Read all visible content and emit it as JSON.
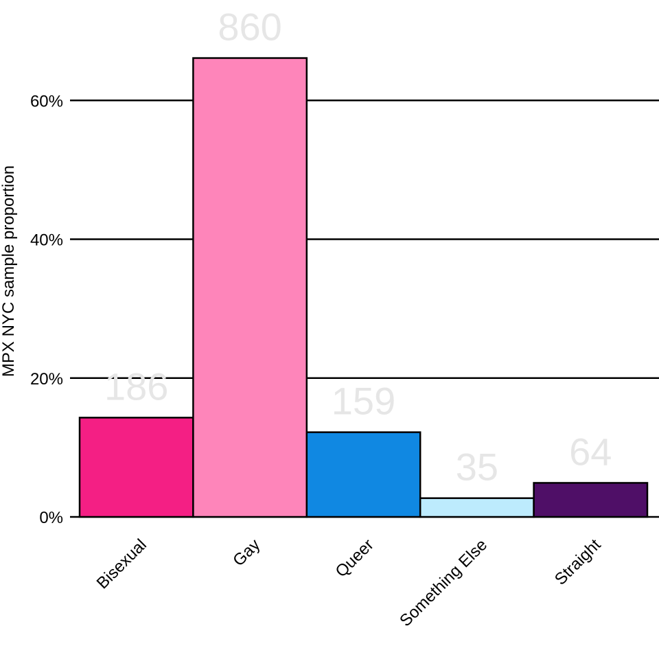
{
  "chart_data": {
    "type": "bar",
    "categories": [
      "Bisexual",
      "Gay",
      "Queer",
      "Something Else",
      "Straight"
    ],
    "values": [
      0.143,
      0.661,
      0.122,
      0.027,
      0.049
    ],
    "counts": [
      "186",
      "860",
      "159",
      "35",
      "64"
    ],
    "colors": [
      "#f41f84",
      "#fe85ba",
      "#1088e2",
      "#bdebfd",
      "#4f0f67"
    ],
    "ylabel": "MPX NYC sample proportion",
    "ylim": [
      0,
      0.7
    ],
    "yticks": [
      0,
      0.2,
      0.4,
      0.6
    ],
    "ytick_labels": [
      "0%",
      "20%",
      "40%",
      "60%"
    ],
    "grid": "horizontal major",
    "legend": "none"
  }
}
